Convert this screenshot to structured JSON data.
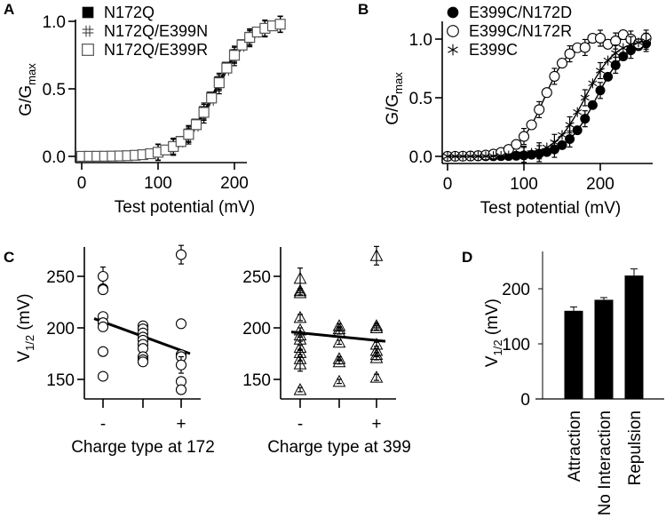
{
  "chart_data": [
    {
      "panel": "A",
      "type": "scatter",
      "xlabel": "Test potential (mV)",
      "ylabel": "G/G",
      "ylabel_sub": "max",
      "xlim": [
        -5,
        270
      ],
      "ylim": [
        -0.03,
        1.05
      ],
      "xticks": [
        0,
        100,
        200
      ],
      "yticks": [
        "0.0",
        "0.5",
        "1.0"
      ],
      "ytick_values": [
        0,
        0.5,
        1.0
      ],
      "legend_position": "top-left",
      "series": [
        {
          "name": "N172Q",
          "marker": "filled-square",
          "v_half": 175,
          "slope": 22
        },
        {
          "name": "N172Q/E399N",
          "marker": "hash",
          "v_half": 178,
          "slope": 22
        },
        {
          "name": "N172Q/E399R",
          "marker": "open-square",
          "v_half": 176,
          "slope": 22
        }
      ],
      "x": [
        0,
        10,
        20,
        30,
        40,
        50,
        60,
        70,
        80,
        90,
        100,
        110,
        120,
        130,
        140,
        150,
        160,
        170,
        180,
        190,
        200,
        210,
        220,
        230,
        240,
        250,
        260
      ]
    },
    {
      "panel": "B",
      "type": "scatter",
      "xlabel": "Test potential (mV)",
      "ylabel": "G/G",
      "ylabel_sub": "max",
      "xlim": [
        -5,
        270
      ],
      "ylim": [
        -0.03,
        1.12
      ],
      "xticks": [
        0,
        100,
        200
      ],
      "yticks": [
        "0.0",
        "0.5",
        "1.0"
      ],
      "ytick_values": [
        0,
        0.5,
        1.0
      ],
      "legend_position": "top-left",
      "series": [
        {
          "name": "E399C/N172D",
          "marker": "filled-circle",
          "v_half": 195,
          "slope": 20
        },
        {
          "name": "E399C/N172R",
          "marker": "open-circle",
          "v_half": 127,
          "slope": 17
        },
        {
          "name": "E399C",
          "marker": "asterisk",
          "v_half": 180,
          "slope": 20
        }
      ],
      "x": [
        0,
        10,
        20,
        30,
        40,
        50,
        60,
        70,
        80,
        90,
        100,
        110,
        120,
        130,
        140,
        150,
        160,
        170,
        180,
        190,
        200,
        210,
        220,
        230,
        240,
        250,
        260
      ]
    },
    {
      "panel": "C-left",
      "type": "scatter",
      "xlabel": "Charge type at 172",
      "ylabel": "V",
      "ylabel_sub": "1/2",
      "ylabel_unit": " (mV)",
      "categories": [
        "-",
        "",
        "+"
      ],
      "yticks": [
        150,
        200,
        250
      ],
      "ylim": [
        131,
        280
      ],
      "marker": "open-circle",
      "points": [
        {
          "cat": 0,
          "y": 250,
          "err": 9
        },
        {
          "cat": 0,
          "y": 238,
          "err": 2
        },
        {
          "cat": 0,
          "y": 237,
          "err": 2
        },
        {
          "cat": 0,
          "y": 211,
          "err": 3
        },
        {
          "cat": 0,
          "y": 205,
          "err": 2
        },
        {
          "cat": 0,
          "y": 201,
          "err": 2
        },
        {
          "cat": 0,
          "y": 177,
          "err": 3
        },
        {
          "cat": 0,
          "y": 153,
          "err": 2
        },
        {
          "cat": 1,
          "y": 202,
          "err": 2
        },
        {
          "cat": 1,
          "y": 199,
          "err": 2
        },
        {
          "cat": 1,
          "y": 195,
          "err": 2
        },
        {
          "cat": 1,
          "y": 191,
          "err": 2
        },
        {
          "cat": 1,
          "y": 188,
          "err": 2
        },
        {
          "cat": 1,
          "y": 184,
          "err": 2
        },
        {
          "cat": 1,
          "y": 180,
          "err": 2
        },
        {
          "cat": 1,
          "y": 172,
          "err": 2
        },
        {
          "cat": 1,
          "y": 169,
          "err": 2
        },
        {
          "cat": 1,
          "y": 167,
          "err": 2
        },
        {
          "cat": 2,
          "y": 271,
          "err": 9
        },
        {
          "cat": 2,
          "y": 204,
          "err": 2
        },
        {
          "cat": 2,
          "y": 174,
          "err": 2
        },
        {
          "cat": 2,
          "y": 172,
          "err": 2
        },
        {
          "cat": 2,
          "y": 164,
          "err": 8
        },
        {
          "cat": 2,
          "y": 148,
          "err": 2
        },
        {
          "cat": 2,
          "y": 140,
          "err": 1
        }
      ],
      "regression": {
        "y_start": 209,
        "y_end": 175
      }
    },
    {
      "panel": "C-right",
      "type": "scatter",
      "xlabel": "Charge type at 399",
      "ylabel": "",
      "categories": [
        "-",
        "",
        "+"
      ],
      "yticks": [
        150,
        200,
        250
      ],
      "ylim": [
        131,
        280
      ],
      "marker": "open-triangle",
      "points": [
        {
          "cat": 0,
          "y": 248,
          "err": 10
        },
        {
          "cat": 0,
          "y": 236,
          "err": 2
        },
        {
          "cat": 0,
          "y": 234,
          "err": 2
        },
        {
          "cat": 0,
          "y": 210,
          "err": 3
        },
        {
          "cat": 0,
          "y": 198,
          "err": 2
        },
        {
          "cat": 0,
          "y": 193,
          "err": 2
        },
        {
          "cat": 0,
          "y": 189,
          "err": 2
        },
        {
          "cat": 0,
          "y": 181,
          "err": 2
        },
        {
          "cat": 0,
          "y": 176,
          "err": 2
        },
        {
          "cat": 0,
          "y": 170,
          "err": 2
        },
        {
          "cat": 0,
          "y": 165,
          "err": 7
        },
        {
          "cat": 0,
          "y": 140,
          "err": 2
        },
        {
          "cat": 1,
          "y": 202,
          "err": 2
        },
        {
          "cat": 1,
          "y": 199,
          "err": 2
        },
        {
          "cat": 1,
          "y": 196,
          "err": 2
        },
        {
          "cat": 1,
          "y": 186,
          "err": 2
        },
        {
          "cat": 1,
          "y": 170,
          "err": 2
        },
        {
          "cat": 1,
          "y": 167,
          "err": 2
        },
        {
          "cat": 1,
          "y": 148,
          "err": 2
        },
        {
          "cat": 2,
          "y": 270,
          "err": 9
        },
        {
          "cat": 2,
          "y": 202,
          "err": 2
        },
        {
          "cat": 2,
          "y": 200,
          "err": 2
        },
        {
          "cat": 2,
          "y": 184,
          "err": 2
        },
        {
          "cat": 2,
          "y": 178,
          "err": 2
        },
        {
          "cat": 2,
          "y": 174,
          "err": 2
        },
        {
          "cat": 2,
          "y": 171,
          "err": 2
        },
        {
          "cat": 2,
          "y": 152,
          "err": 3
        }
      ],
      "regression": {
        "y_start": 196,
        "y_end": 187
      }
    },
    {
      "panel": "D",
      "type": "bar",
      "ylabel": "V",
      "ylabel_sub": "1/2",
      "ylabel_unit": " (mV)",
      "categories": [
        "Attraction",
        "No Interaction",
        "Repulsion"
      ],
      "values": [
        160,
        180,
        224
      ],
      "errors": [
        7,
        4,
        12
      ],
      "yticks": [
        0,
        100,
        200
      ],
      "ylim": [
        0,
        270
      ]
    }
  ],
  "panel_labels": [
    "A",
    "B",
    "C",
    "D"
  ]
}
